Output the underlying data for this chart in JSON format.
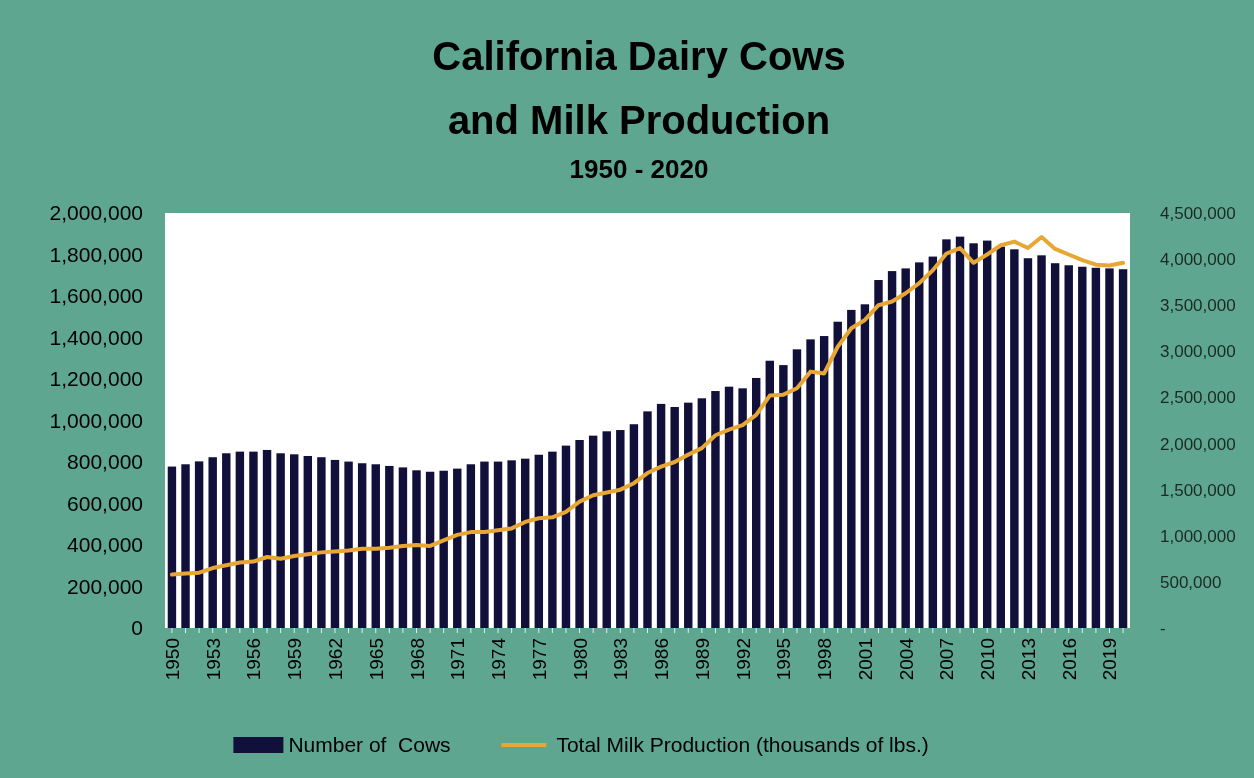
{
  "chart_data": {
    "type": "bar",
    "title": "California Dairy Cows and Milk Production",
    "subtitle": "1950 - 2020",
    "categories": [
      "1950",
      null,
      null,
      "1953",
      null,
      null,
      "1956",
      null,
      null,
      "1959",
      null,
      null,
      "1962",
      null,
      null,
      "1965",
      null,
      null,
      "1968",
      null,
      null,
      "1971",
      null,
      null,
      "1974",
      null,
      null,
      "1977",
      null,
      null,
      "1980",
      null,
      null,
      "1983",
      null,
      null,
      "1986",
      null,
      null,
      "1989",
      null,
      null,
      "1992",
      null,
      null,
      "1995",
      null,
      null,
      "1998",
      null,
      null,
      "2001",
      null,
      null,
      "2004",
      null,
      null,
      "2007",
      null,
      null,
      "2010",
      null,
      null,
      "2013",
      null,
      null,
      "2016",
      null,
      null,
      "2019",
      null
    ],
    "series": [
      {
        "name": "Number of  Cows",
        "color": "#10103a",
        "values": [
          778000,
          789000,
          803000,
          823000,
          842000,
          850000,
          850000,
          858000,
          842000,
          837000,
          829000,
          823000,
          810000,
          802000,
          794000,
          789000,
          781000,
          774000,
          760000,
          753000,
          758000,
          768000,
          789000,
          802000,
          802000,
          808000,
          816000,
          835000,
          850000,
          879000,
          906000,
          927000,
          948000,
          954000,
          982000,
          1044000,
          1080000,
          1065000,
          1086000,
          1107000,
          1142000,
          1163000,
          1155000,
          1205000,
          1288000,
          1267000,
          1343000,
          1391000,
          1407000,
          1476000,
          1533000,
          1560000,
          1677000,
          1720000,
          1733000,
          1762000,
          1790000,
          1873000,
          1886000,
          1854000,
          1867000,
          1838000,
          1825000,
          1782000,
          1796000,
          1758000,
          1748000,
          1741000,
          1736000,
          1733000,
          1729000
        ]
      },
      {
        "name": "Total Milk Production (thousands of lbs.)",
        "type": "line",
        "axis": "y2",
        "color": "#e8a735",
        "values": [
          580000,
          590000,
          600000,
          650000,
          680000,
          710000,
          720000,
          770000,
          750000,
          780000,
          800000,
          820000,
          830000,
          840000,
          860000,
          860000,
          870000,
          890000,
          900000,
          890000,
          950000,
          1010000,
          1040000,
          1040000,
          1060000,
          1080000,
          1150000,
          1190000,
          1200000,
          1260000,
          1370000,
          1440000,
          1470000,
          1500000,
          1570000,
          1680000,
          1750000,
          1800000,
          1880000,
          1950000,
          2090000,
          2150000,
          2200000,
          2310000,
          2520000,
          2530000,
          2600000,
          2780000,
          2760000,
          3050000,
          3250000,
          3340000,
          3500000,
          3540000,
          3630000,
          3740000,
          3880000,
          4060000,
          4120000,
          3960000,
          4050000,
          4150000,
          4190000,
          4120000,
          4240000,
          4110000,
          4050000,
          3990000,
          3940000,
          3930000,
          3960000
        ]
      }
    ],
    "ylim": [
      0,
      2000000
    ],
    "yticks": [
      0,
      {
        "value": 200000,
        "label": "200,000"
      },
      {
        "value": 400000,
        "label": "400,000"
      },
      {
        "value": 600000,
        "label": "600,000"
      },
      {
        "value": 800000,
        "label": "800,000"
      },
      {
        "value": 1000000,
        "label": "1,000,000"
      },
      {
        "value": 1200000,
        "label": "1,200,000"
      },
      {
        "value": 1400000,
        "label": "1,400,000"
      },
      {
        "value": 1600000,
        "label": "1,600,000"
      },
      {
        "value": 1800000,
        "label": "1,800,000"
      },
      {
        "value": 2000000,
        "label": "2,000,000"
      }
    ],
    "y2lim": [
      0,
      4500000
    ],
    "y2ticks": [
      {
        "value": 0,
        "label": "-"
      },
      {
        "value": 500000,
        "label": "500,000"
      },
      {
        "value": 1000000,
        "label": "1,000,000"
      },
      {
        "value": 1500000,
        "label": "1,500,000"
      },
      {
        "value": 2000000,
        "label": "2,000,000"
      },
      {
        "value": 2500000,
        "label": "2,500,000"
      },
      {
        "value": 3000000,
        "label": "3,000,000"
      },
      {
        "value": 3500000,
        "label": "3,500,000"
      },
      {
        "value": 4000000,
        "label": "4,000,000"
      },
      {
        "value": 4500000,
        "label": "4,500,000"
      }
    ],
    "legend": "bottom"
  }
}
